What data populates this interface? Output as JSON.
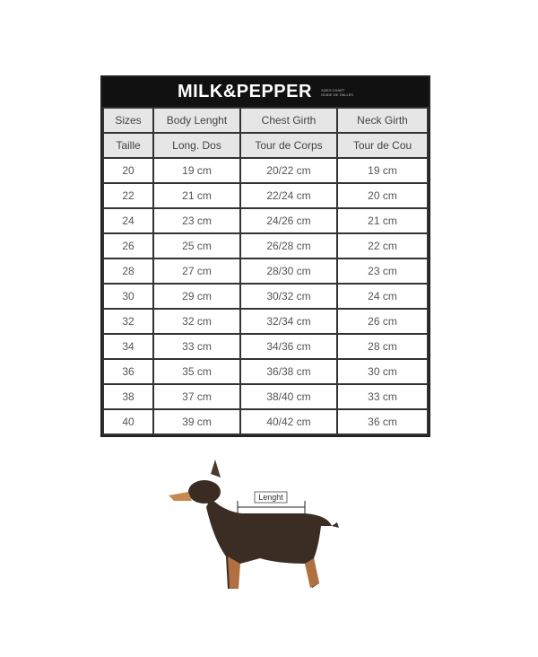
{
  "brand": {
    "logo": "MILK&PEPPER",
    "subtitle_1": "SIZES CHART",
    "subtitle_2": "GUIDE DE TAILLES"
  },
  "headers": {
    "en": [
      "Sizes",
      "Body Lenght",
      "Chest Girth",
      "Neck Girth"
    ],
    "fr": [
      "Taille",
      "Long. Dos",
      "Tour de Corps",
      "Tour de Cou"
    ]
  },
  "rows": [
    [
      "20",
      "19 cm",
      "20/22 cm",
      "19 cm"
    ],
    [
      "22",
      "21 cm",
      "22/24 cm",
      "20 cm"
    ],
    [
      "24",
      "23 cm",
      "24/26 cm",
      "21 cm"
    ],
    [
      "26",
      "25 cm",
      "26/28 cm",
      "22 cm"
    ],
    [
      "28",
      "27 cm",
      "28/30 cm",
      "23 cm"
    ],
    [
      "30",
      "29 cm",
      "30/32 cm",
      "24 cm"
    ],
    [
      "32",
      "32 cm",
      "32/34 cm",
      "26 cm"
    ],
    [
      "34",
      "33 cm",
      "34/36 cm",
      "28 cm"
    ],
    [
      "36",
      "35 cm",
      "36/38 cm",
      "30 cm"
    ],
    [
      "38",
      "37 cm",
      "38/40 cm",
      "33 cm"
    ],
    [
      "40",
      "39 cm",
      "40/42 cm",
      "36 cm"
    ]
  ],
  "illustration": {
    "length_label": "Lenght"
  }
}
